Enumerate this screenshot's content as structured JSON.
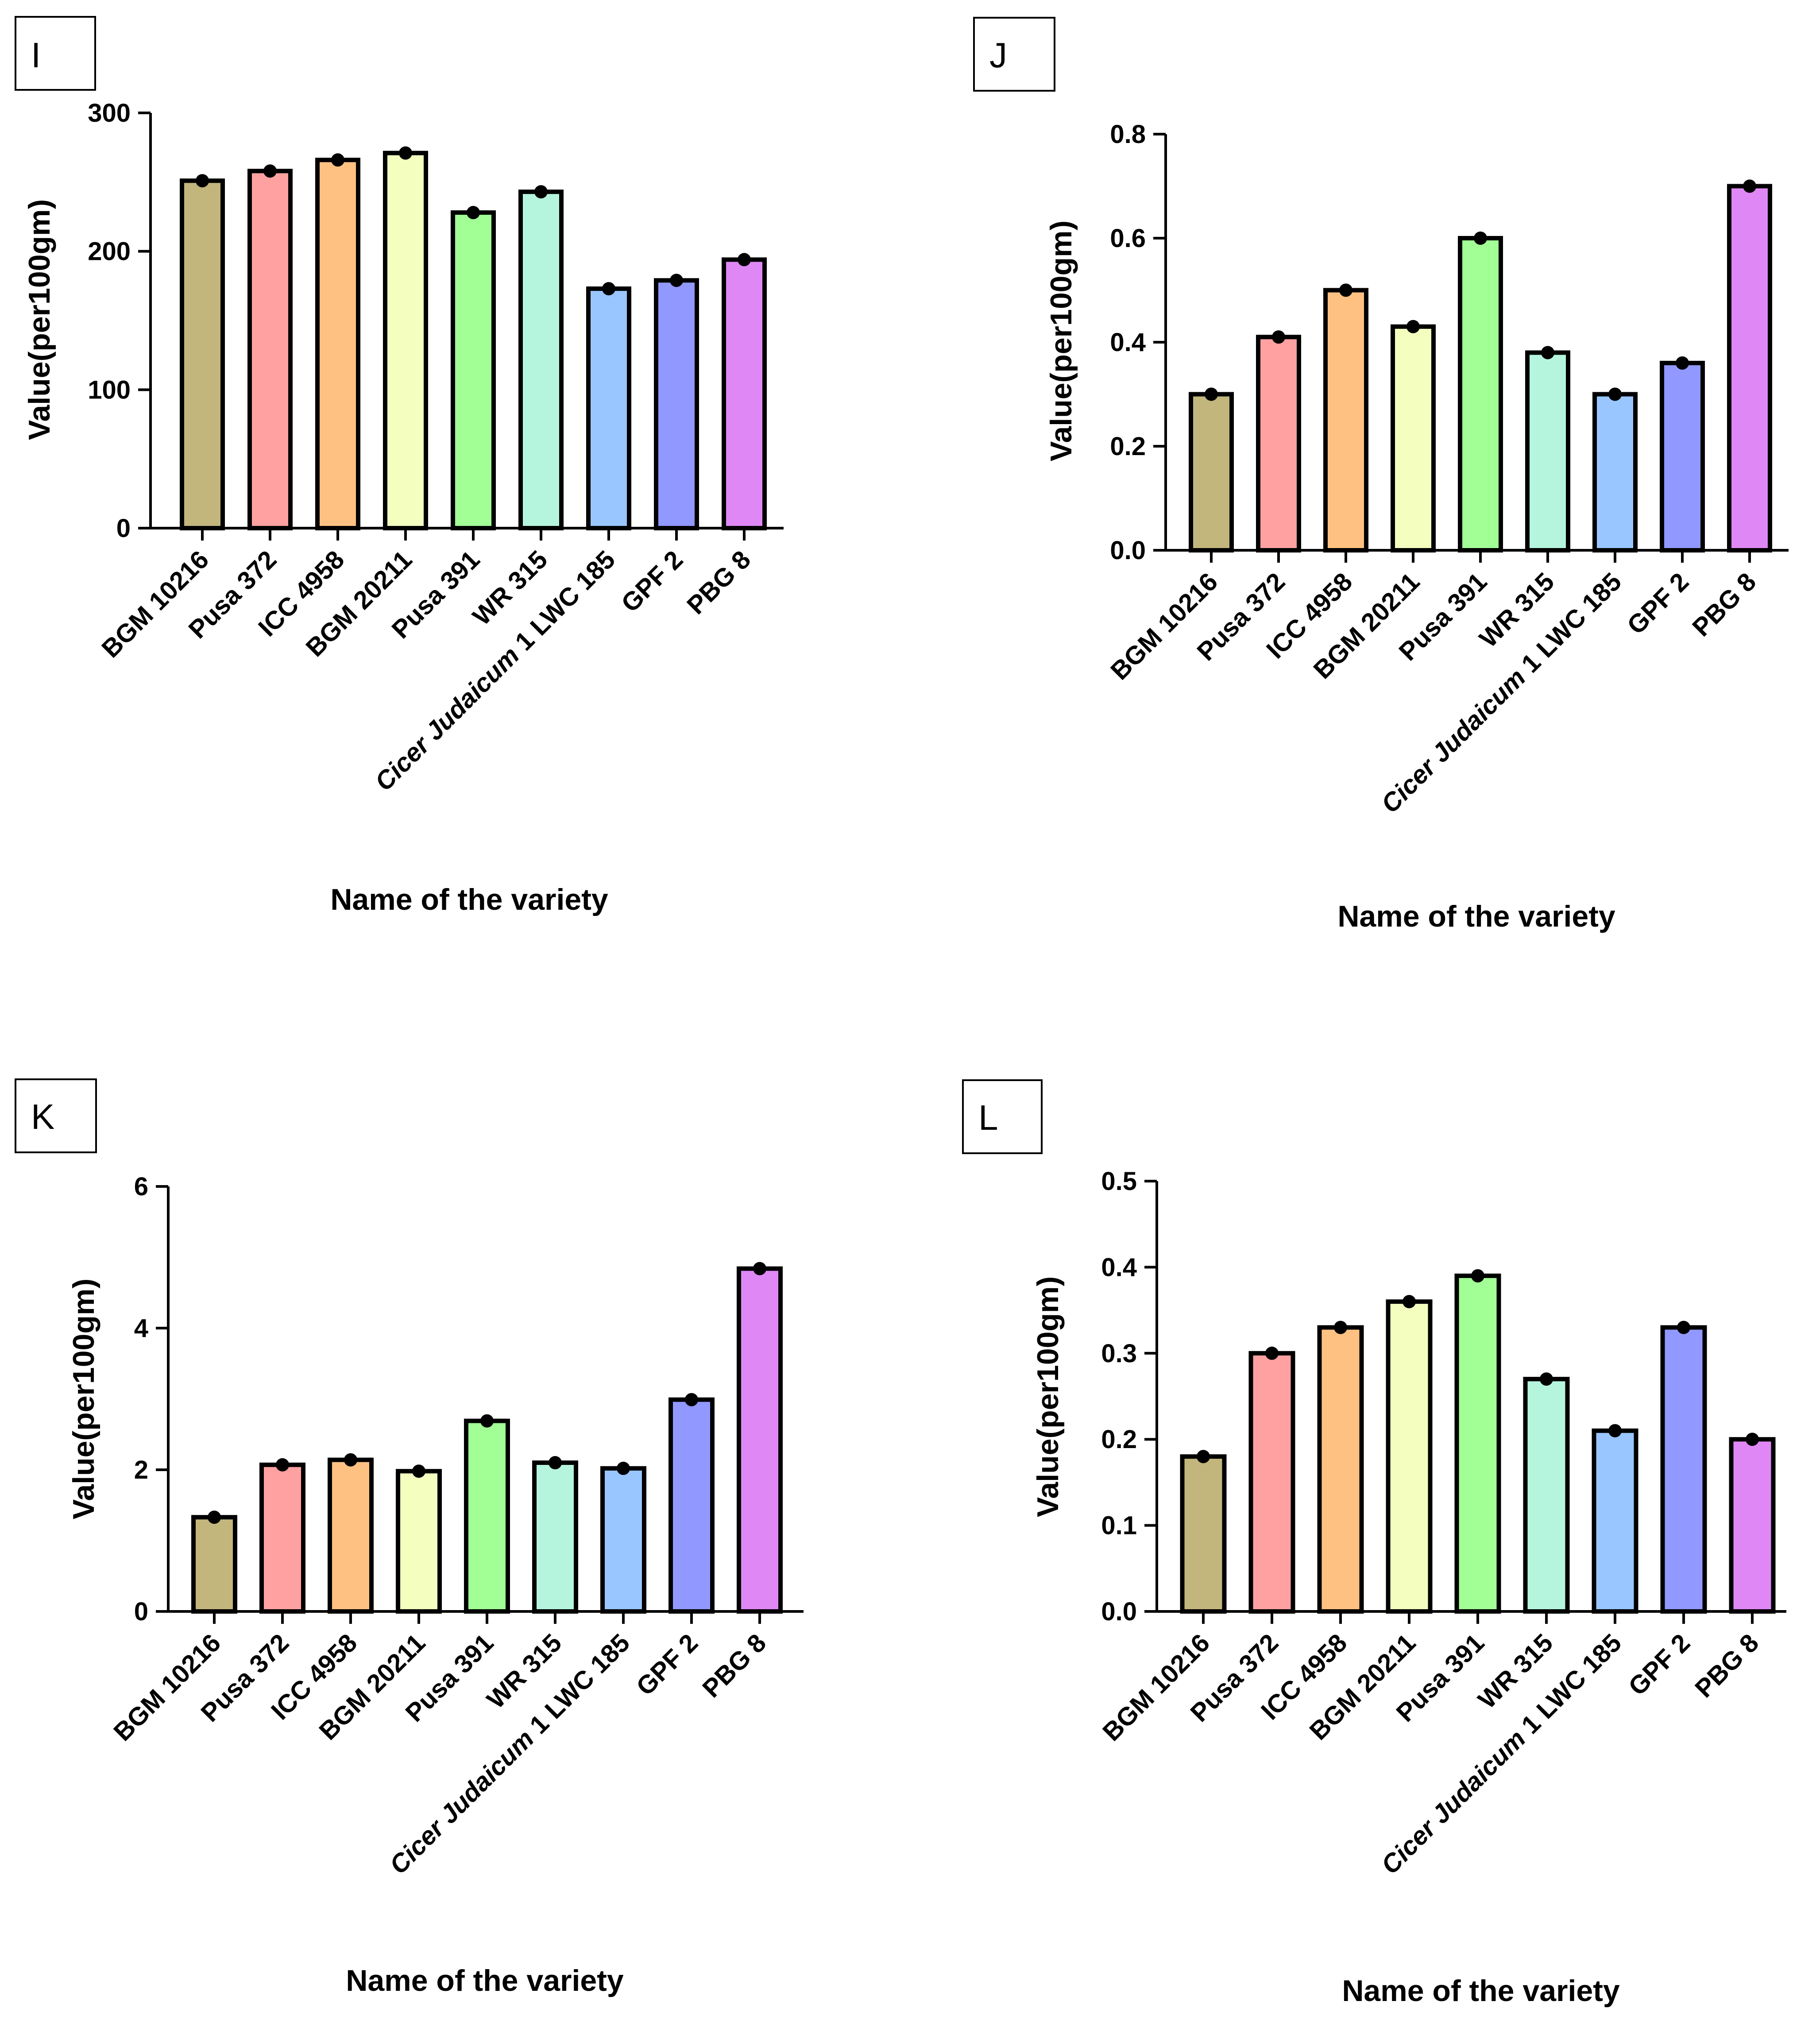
{
  "figure": {
    "panels_meta": "2x2 grid of bar charts"
  },
  "chart_data": [
    {
      "panel": "I",
      "type": "bar",
      "categories": [
        "BGM 10216",
        "Pusa 372",
        "ICC 4958",
        "BGM 20211",
        "Pusa 391",
        "WR 315",
        "Cicer Judaicum 1 LWC 185",
        "GPF 2",
        "PBG 8"
      ],
      "italic_prefix": [
        "",
        "",
        "",
        "",
        "",
        "",
        "Cicer Judaicum",
        "",
        ""
      ],
      "values": [
        251,
        258,
        266,
        271,
        228,
        243,
        173,
        179,
        194
      ],
      "colors": [
        "#c2b67d",
        "#ffa1a1",
        "#ffc182",
        "#f4ffbf",
        "#a2ff96",
        "#b5f5de",
        "#99c6ff",
        "#9198ff",
        "#df88f5"
      ],
      "xlabel": "Name of the variety",
      "ylabel": "Value(per100gm)",
      "ylim": [
        0,
        300
      ],
      "yticks": [
        "0",
        "100",
        "200",
        "300"
      ]
    },
    {
      "panel": "J",
      "type": "bar",
      "categories": [
        "BGM 10216",
        "Pusa 372",
        "ICC 4958",
        "BGM 20211",
        "Pusa 391",
        "WR 315",
        "Cicer Judaicum 1 LWC 185",
        "GPF 2",
        "PBG 8"
      ],
      "italic_prefix": [
        "",
        "",
        "",
        "",
        "",
        "",
        "Cicer Judaicum",
        "",
        ""
      ],
      "values": [
        0.3,
        0.41,
        0.5,
        0.43,
        0.6,
        0.38,
        0.3,
        0.36,
        0.7
      ],
      "colors": [
        "#c2b67d",
        "#ffa1a1",
        "#ffc182",
        "#f4ffbf",
        "#a2ff96",
        "#b5f5de",
        "#99c6ff",
        "#9198ff",
        "#df88f5"
      ],
      "xlabel": "Name of the variety",
      "ylabel": "Value(per100gm)",
      "ylim": [
        0,
        0.8
      ],
      "yticks": [
        "0.0",
        "0.2",
        "0.4",
        "0.6",
        "0.8"
      ]
    },
    {
      "panel": "K",
      "type": "bar",
      "categories": [
        "BGM 10216",
        "Pusa 372",
        "ICC 4958",
        "BGM 20211",
        "Pusa 391",
        "WR 315",
        "Cicer Judaicum 1 LWC 185",
        "GPF 2",
        "PBG 8"
      ],
      "italic_prefix": [
        "",
        "",
        "",
        "",
        "",
        "",
        "Cicer Judaicum",
        "",
        ""
      ],
      "values": [
        1.33,
        2.07,
        2.14,
        1.98,
        2.69,
        2.1,
        2.02,
        2.99,
        4.84
      ],
      "colors": [
        "#c2b67d",
        "#ffa1a1",
        "#ffc182",
        "#f4ffbf",
        "#a2ff96",
        "#b5f5de",
        "#99c6ff",
        "#9198ff",
        "#df88f5"
      ],
      "xlabel": "Name of the variety",
      "ylabel": "Value(per100gm)",
      "ylim": [
        0,
        6
      ],
      "yticks": [
        "0",
        "2",
        "4",
        "6"
      ]
    },
    {
      "panel": "L",
      "type": "bar",
      "categories": [
        "BGM 10216",
        "Pusa 372",
        "ICC 4958",
        "BGM 20211",
        "Pusa 391",
        "WR 315",
        "Cicer Judaicum 1 LWC 185",
        "GPF 2",
        "PBG 8"
      ],
      "italic_prefix": [
        "",
        "",
        "",
        "",
        "",
        "",
        "Cicer Judaicum",
        "",
        ""
      ],
      "values": [
        0.18,
        0.3,
        0.33,
        0.36,
        0.39,
        0.27,
        0.21,
        0.33,
        0.2
      ],
      "colors": [
        "#c2b67d",
        "#ffa1a1",
        "#ffc182",
        "#f4ffbf",
        "#a2ff96",
        "#b5f5de",
        "#99c6ff",
        "#9198ff",
        "#df88f5"
      ],
      "xlabel": "Name of the variety",
      "ylabel": "Value(per100gm)",
      "ylim": [
        0,
        0.5
      ],
      "yticks": [
        "0.0",
        "0.1",
        "0.2",
        "0.3",
        "0.4",
        "0.5"
      ]
    }
  ]
}
